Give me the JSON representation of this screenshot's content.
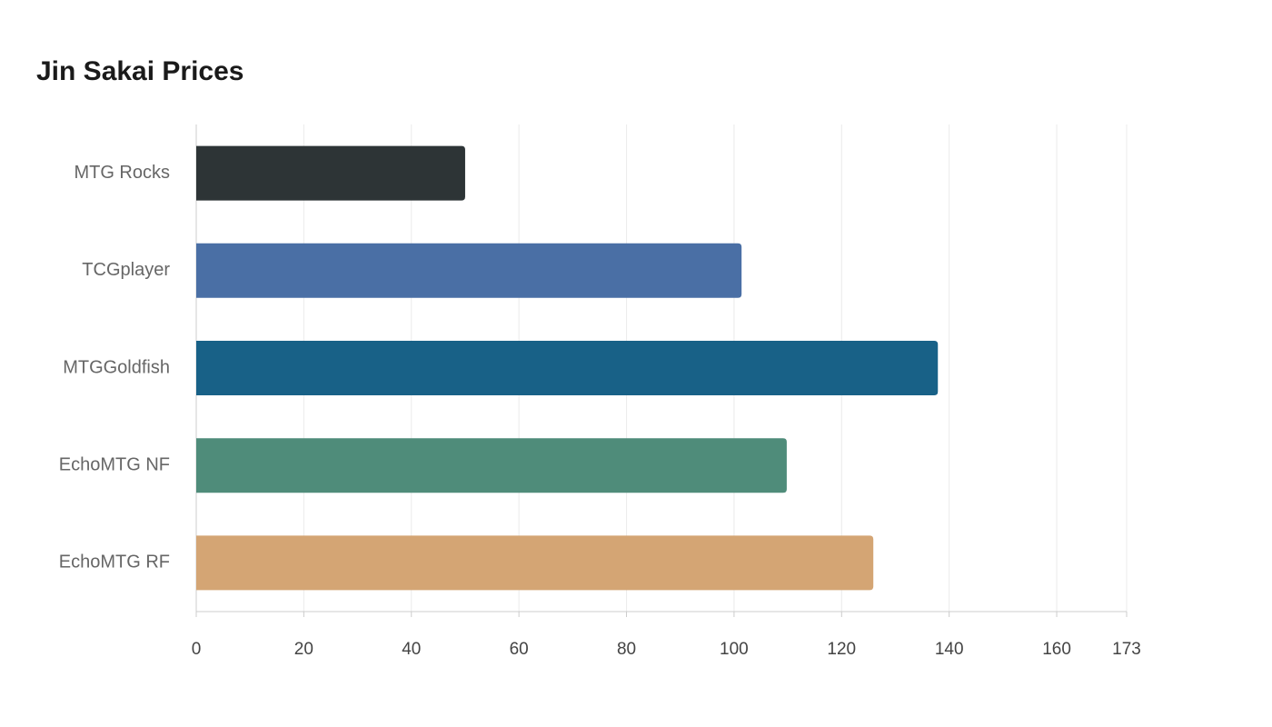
{
  "chart_data": {
    "type": "bar",
    "orientation": "horizontal",
    "title": "Jin Sakai Prices",
    "categories": [
      "MTG Rocks",
      "TCGplayer",
      "MTGGoldfish",
      "EchoMTG NF",
      "EchoMTG RF"
    ],
    "values": [
      50,
      101.4,
      137.9,
      109.8,
      125.9
    ],
    "colors": [
      "#2d3436",
      "#4a6fa5",
      "#186187",
      "#4f8c7a",
      "#d4a574"
    ],
    "xlim": [
      0,
      173
    ],
    "xticks": [
      0,
      20,
      40,
      60,
      80,
      100,
      120,
      140,
      160,
      173
    ],
    "grid": true
  }
}
